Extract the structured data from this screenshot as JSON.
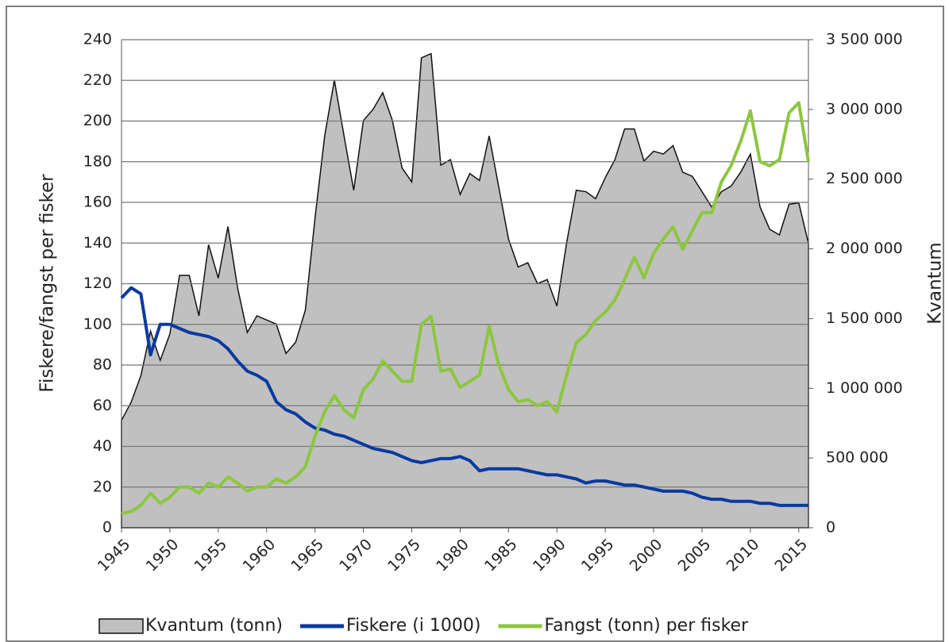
{
  "chart_data": {
    "type": "line",
    "y_label": "Fiskere/fangst per fisker",
    "y2_label": "Kvantum",
    "x": [
      1945,
      1946,
      1947,
      1948,
      1949,
      1950,
      1951,
      1952,
      1953,
      1954,
      1955,
      1956,
      1957,
      1958,
      1959,
      1960,
      1961,
      1962,
      1963,
      1964,
      1965,
      1966,
      1967,
      1968,
      1969,
      1970,
      1971,
      1972,
      1973,
      1974,
      1975,
      1976,
      1977,
      1978,
      1979,
      1980,
      1981,
      1982,
      1983,
      1984,
      1985,
      1986,
      1987,
      1988,
      1989,
      1990,
      1991,
      1992,
      1993,
      1994,
      1995,
      1996,
      1997,
      1998,
      1999,
      2000,
      2001,
      2002,
      2003,
      2004,
      2005,
      2006,
      2007,
      2008,
      2009,
      2010,
      2011,
      2012,
      2013,
      2014,
      2015,
      2016
    ],
    "xlim": [
      1945,
      2016
    ],
    "xticks": [
      1945,
      1950,
      1955,
      1960,
      1965,
      1970,
      1975,
      1980,
      1985,
      1990,
      1995,
      2000,
      2005,
      2010,
      2015
    ],
    "ylim": [
      0,
      240
    ],
    "yticks": [
      0,
      20,
      40,
      60,
      80,
      100,
      120,
      140,
      160,
      180,
      200,
      220,
      240
    ],
    "y2lim": [
      0,
      3500000
    ],
    "y2ticks": [
      {
        "value": 0,
        "label": "0"
      },
      {
        "value": 500000,
        "label": "500 000"
      },
      {
        "value": 1000000,
        "label": "1 000 000"
      },
      {
        "value": 1500000,
        "label": "1 500 000"
      },
      {
        "value": 2000000,
        "label": "2 000 000"
      },
      {
        "value": 2500000,
        "label": "2 500 000"
      },
      {
        "value": 3000000,
        "label": "3 000 000"
      },
      {
        "value": 3500000,
        "label": "3 500 000"
      }
    ],
    "grid": true,
    "series": [
      {
        "name": "Kvantum (tonn)",
        "type": "area",
        "axis": "y2",
        "color": "#c0c0c0",
        "values": [
          770000,
          900000,
          1090000,
          1410000,
          1200000,
          1390000,
          1810000,
          1810000,
          1520000,
          2030000,
          1790000,
          2160000,
          1720000,
          1400000,
          1520000,
          1490000,
          1460000,
          1250000,
          1330000,
          1560000,
          2220000,
          2810000,
          3210000,
          2810000,
          2420000,
          2920000,
          3000000,
          3120000,
          2920000,
          2580000,
          2480000,
          3370000,
          3400000,
          2600000,
          2640000,
          2390000,
          2540000,
          2490000,
          2810000,
          2440000,
          2070000,
          1870000,
          1900000,
          1750000,
          1780000,
          1590000,
          2040000,
          2420000,
          2410000,
          2360000,
          2510000,
          2640000,
          2860000,
          2860000,
          2630000,
          2700000,
          2680000,
          2740000,
          2550000,
          2520000,
          2410000,
          2300000,
          2410000,
          2450000,
          2550000,
          2680000,
          2300000,
          2140000,
          2100000,
          2320000,
          2330000,
          2040000
        ]
      },
      {
        "name": "Fiskere (i 1000)",
        "type": "line",
        "color": "#0a3aa0",
        "values": [
          113,
          118,
          115,
          85,
          100,
          100,
          98,
          96,
          95,
          94,
          92,
          88,
          82,
          77,
          75,
          72,
          62,
          58,
          56,
          52,
          49,
          48,
          46,
          45,
          43,
          41,
          39,
          38,
          37,
          35,
          33,
          32,
          33,
          34,
          34,
          35,
          33,
          28,
          29,
          29,
          29,
          29,
          28,
          27,
          26,
          26,
          25,
          24,
          22,
          23,
          23,
          22,
          21,
          21,
          20,
          19,
          18,
          18,
          18,
          17,
          15,
          14,
          14,
          13,
          13,
          13,
          12,
          12,
          11,
          11,
          11,
          11
        ]
      },
      {
        "name": "Fangst (tonn) per fisker",
        "type": "line",
        "color": "#8cc63f",
        "values": [
          7,
          8,
          11,
          17,
          12,
          15,
          20,
          20,
          17,
          22,
          20,
          25,
          22,
          18,
          20,
          20,
          24,
          22,
          25,
          30,
          45,
          57,
          65,
          58,
          54,
          68,
          73,
          82,
          77,
          72,
          72,
          100,
          104,
          77,
          78,
          69,
          72,
          75,
          99,
          80,
          68,
          62,
          63,
          60,
          62,
          57,
          75,
          91,
          95,
          102,
          106,
          112,
          122,
          133,
          123,
          135,
          142,
          148,
          137,
          146,
          155,
          155,
          170,
          178,
          190,
          205,
          180,
          178,
          181,
          204,
          209,
          180
        ]
      }
    ]
  }
}
